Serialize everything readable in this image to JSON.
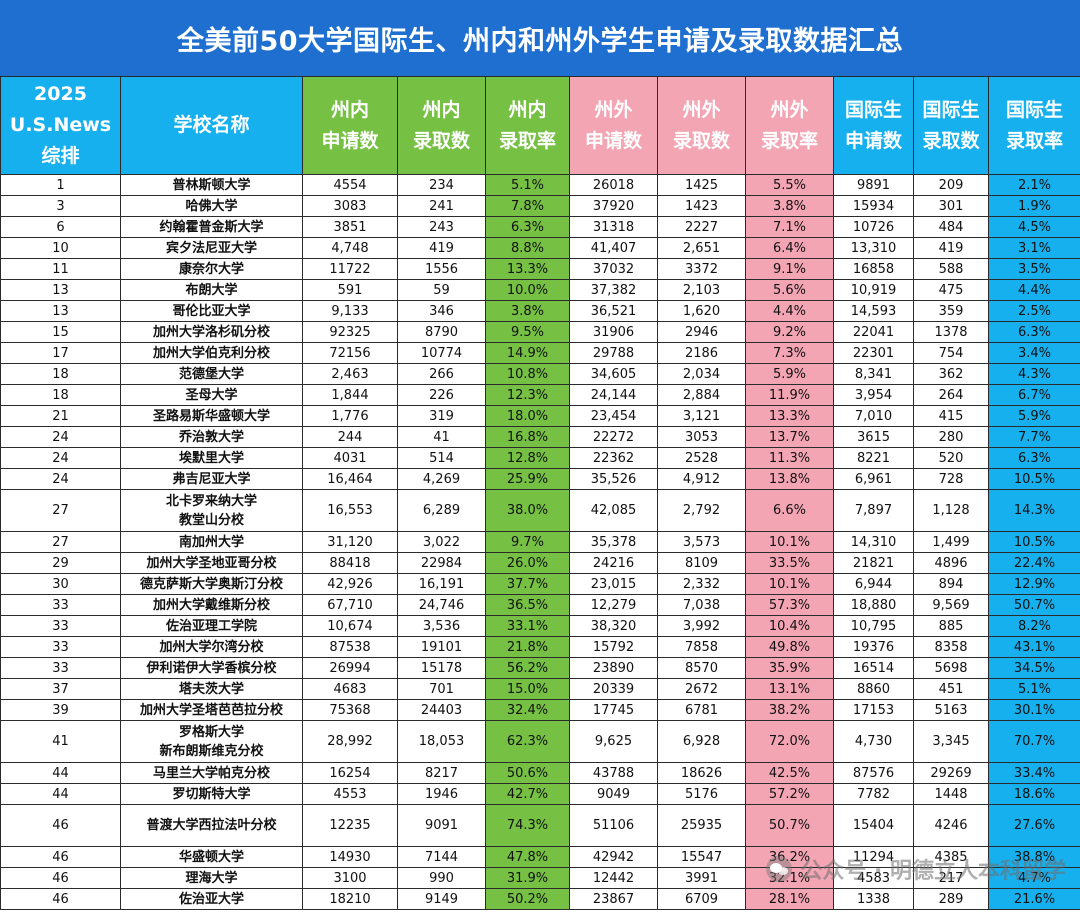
{
  "title": "全美前50大学国际生、州内和州外学生申请及录取数据汇总",
  "headers": {
    "rank": [
      "2025",
      "U.S.News",
      "综排"
    ],
    "school": "学校名称",
    "in_apps": [
      "州内",
      "申请数"
    ],
    "in_admits": [
      "州内",
      "录取数"
    ],
    "in_rate": [
      "州内",
      "录取率"
    ],
    "out_apps": [
      "州外",
      "申请数"
    ],
    "out_admits": [
      "州外",
      "录取数"
    ],
    "out_rate": [
      "州外",
      "录取率"
    ],
    "intl_apps": [
      "国际生",
      "申请数"
    ],
    "intl_admits": [
      "国际生",
      "录取数"
    ],
    "intl_rate": [
      "国际生",
      "录取率"
    ]
  },
  "rows": [
    {
      "rank": "1",
      "school": "普林斯顿大学",
      "in_apps": "4554",
      "in_admits": "234",
      "in_rate": "5.1%",
      "out_apps": "26018",
      "out_admits": "1425",
      "out_rate": "5.5%",
      "intl_apps": "9891",
      "intl_admits": "209",
      "intl_rate": "2.1%"
    },
    {
      "rank": "3",
      "school": "哈佛大学",
      "in_apps": "3083",
      "in_admits": "241",
      "in_rate": "7.8%",
      "out_apps": "37920",
      "out_admits": "1423",
      "out_rate": "3.8%",
      "intl_apps": "15934",
      "intl_admits": "301",
      "intl_rate": "1.9%"
    },
    {
      "rank": "6",
      "school": "约翰霍普金斯大学",
      "in_apps": "3851",
      "in_admits": "243",
      "in_rate": "6.3%",
      "out_apps": "31318",
      "out_admits": "2227",
      "out_rate": "7.1%",
      "intl_apps": "10726",
      "intl_admits": "484",
      "intl_rate": "4.5%"
    },
    {
      "rank": "10",
      "school": "宾夕法尼亚大学",
      "in_apps": "4,748",
      "in_admits": "419",
      "in_rate": "8.8%",
      "out_apps": "41,407",
      "out_admits": "2,651",
      "out_rate": "6.4%",
      "intl_apps": "13,310",
      "intl_admits": "419",
      "intl_rate": "3.1%"
    },
    {
      "rank": "11",
      "school": "康奈尔大学",
      "in_apps": "11722",
      "in_admits": "1556",
      "in_rate": "13.3%",
      "out_apps": "37032",
      "out_admits": "3372",
      "out_rate": "9.1%",
      "intl_apps": "16858",
      "intl_admits": "588",
      "intl_rate": "3.5%"
    },
    {
      "rank": "13",
      "school": "布朗大学",
      "in_apps": "591",
      "in_admits": "59",
      "in_rate": "10.0%",
      "out_apps": "37,382",
      "out_admits": "2,103",
      "out_rate": "5.6%",
      "intl_apps": "10,919",
      "intl_admits": "475",
      "intl_rate": "4.4%"
    },
    {
      "rank": "13",
      "school": "哥伦比亚大学",
      "in_apps": "9,133",
      "in_admits": "346",
      "in_rate": "3.8%",
      "out_apps": "36,521",
      "out_admits": "1,620",
      "out_rate": "4.4%",
      "intl_apps": "14,593",
      "intl_admits": "359",
      "intl_rate": "2.5%"
    },
    {
      "rank": "15",
      "school": "加州大学洛杉矶分校",
      "in_apps": "92325",
      "in_admits": "8790",
      "in_rate": "9.5%",
      "out_apps": "31906",
      "out_admits": "2946",
      "out_rate": "9.2%",
      "intl_apps": "22041",
      "intl_admits": "1378",
      "intl_rate": "6.3%"
    },
    {
      "rank": "17",
      "school": "加州大学伯克利分校",
      "in_apps": "72156",
      "in_admits": "10774",
      "in_rate": "14.9%",
      "out_apps": "29788",
      "out_admits": "2186",
      "out_rate": "7.3%",
      "intl_apps": "22301",
      "intl_admits": "754",
      "intl_rate": "3.4%"
    },
    {
      "rank": "18",
      "school": "范德堡大学",
      "in_apps": "2,463",
      "in_admits": "266",
      "in_rate": "10.8%",
      "out_apps": "34,605",
      "out_admits": "2,034",
      "out_rate": "5.9%",
      "intl_apps": "8,341",
      "intl_admits": "362",
      "intl_rate": "4.3%"
    },
    {
      "rank": "18",
      "school": "圣母大学",
      "in_apps": "1,844",
      "in_admits": "226",
      "in_rate": "12.3%",
      "out_apps": "24,144",
      "out_admits": "2,884",
      "out_rate": "11.9%",
      "intl_apps": "3,954",
      "intl_admits": "264",
      "intl_rate": "6.7%"
    },
    {
      "rank": "21",
      "school": "圣路易斯华盛顿大学",
      "in_apps": "1,776",
      "in_admits": "319",
      "in_rate": "18.0%",
      "out_apps": "23,454",
      "out_admits": "3,121",
      "out_rate": "13.3%",
      "intl_apps": "7,010",
      "intl_admits": "415",
      "intl_rate": "5.9%"
    },
    {
      "rank": "24",
      "school": "乔治敦大学",
      "in_apps": "244",
      "in_admits": "41",
      "in_rate": "16.8%",
      "out_apps": "22272",
      "out_admits": "3053",
      "out_rate": "13.7%",
      "intl_apps": "3615",
      "intl_admits": "280",
      "intl_rate": "7.7%"
    },
    {
      "rank": "24",
      "school": "埃默里大学",
      "in_apps": "4031",
      "in_admits": "514",
      "in_rate": "12.8%",
      "out_apps": "22362",
      "out_admits": "2528",
      "out_rate": "11.3%",
      "intl_apps": "8221",
      "intl_admits": "520",
      "intl_rate": "6.3%"
    },
    {
      "rank": "24",
      "school": "弗吉尼亚大学",
      "in_apps": "16,464",
      "in_admits": "4,269",
      "in_rate": "25.9%",
      "out_apps": "35,526",
      "out_admits": "4,912",
      "out_rate": "13.8%",
      "intl_apps": "6,961",
      "intl_admits": "728",
      "intl_rate": "10.5%"
    },
    {
      "rank": "27",
      "school": "北卡罗来纳大学教堂山分校",
      "school_lines": [
        "北卡罗来纳大学",
        "教堂山分校"
      ],
      "tall": true,
      "in_apps": "16,553",
      "in_admits": "6,289",
      "in_rate": "38.0%",
      "out_apps": "42,085",
      "out_admits": "2,792",
      "out_rate": "6.6%",
      "intl_apps": "7,897",
      "intl_admits": "1,128",
      "intl_rate": "14.3%"
    },
    {
      "rank": "27",
      "school": "南加州大学",
      "in_apps": "31,120",
      "in_admits": "3,022",
      "in_rate": "9.7%",
      "out_apps": "35,378",
      "out_admits": "3,573",
      "out_rate": "10.1%",
      "intl_apps": "14,310",
      "intl_admits": "1,499",
      "intl_rate": "10.5%"
    },
    {
      "rank": "29",
      "school": "加州大学圣地亚哥分校",
      "in_apps": "88418",
      "in_admits": "22984",
      "in_rate": "26.0%",
      "out_apps": "24216",
      "out_admits": "8109",
      "out_rate": "33.5%",
      "intl_apps": "21821",
      "intl_admits": "4896",
      "intl_rate": "22.4%"
    },
    {
      "rank": "30",
      "school": "德克萨斯大学奥斯汀分校",
      "in_apps": "42,926",
      "in_admits": "16,191",
      "in_rate": "37.7%",
      "out_apps": "23,015",
      "out_admits": "2,332",
      "out_rate": "10.1%",
      "intl_apps": "6,944",
      "intl_admits": "894",
      "intl_rate": "12.9%"
    },
    {
      "rank": "33",
      "school": "加州大学戴维斯分校",
      "in_apps": "67,710",
      "in_admits": "24,746",
      "in_rate": "36.5%",
      "out_apps": "12,279",
      "out_admits": "7,038",
      "out_rate": "57.3%",
      "intl_apps": "18,880",
      "intl_admits": "9,569",
      "intl_rate": "50.7%"
    },
    {
      "rank": "33",
      "school": "佐治亚理工学院",
      "in_apps": "10,674",
      "in_admits": "3,536",
      "in_rate": "33.1%",
      "out_apps": "38,320",
      "out_admits": "3,992",
      "out_rate": "10.4%",
      "intl_apps": "10,795",
      "intl_admits": "885",
      "intl_rate": "8.2%"
    },
    {
      "rank": "33",
      "school": "加州大学尔湾分校",
      "in_apps": "87538",
      "in_admits": "19101",
      "in_rate": "21.8%",
      "out_apps": "15792",
      "out_admits": "7858",
      "out_rate": "49.8%",
      "intl_apps": "19376",
      "intl_admits": "8358",
      "intl_rate": "43.1%"
    },
    {
      "rank": "33",
      "school": "伊利诺伊大学香槟分校",
      "in_apps": "26994",
      "in_admits": "15178",
      "in_rate": "56.2%",
      "out_apps": "23890",
      "out_admits": "8570",
      "out_rate": "35.9%",
      "intl_apps": "16514",
      "intl_admits": "5698",
      "intl_rate": "34.5%"
    },
    {
      "rank": "37",
      "school": "塔夫茨大学",
      "in_apps": "4683",
      "in_admits": "701",
      "in_rate": "15.0%",
      "out_apps": "20339",
      "out_admits": "2672",
      "out_rate": "13.1%",
      "intl_apps": "8860",
      "intl_admits": "451",
      "intl_rate": "5.1%"
    },
    {
      "rank": "39",
      "school": "加州大学圣塔芭芭拉分校",
      "in_apps": "75368",
      "in_admits": "24403",
      "in_rate": "32.4%",
      "out_apps": "17745",
      "out_admits": "6781",
      "out_rate": "38.2%",
      "intl_apps": "17153",
      "intl_admits": "5163",
      "intl_rate": "30.1%"
    },
    {
      "rank": "41",
      "school": "罗格斯大学新布朗斯维克分校",
      "school_lines": [
        "罗格斯大学",
        "新布朗斯维克分校"
      ],
      "tall": true,
      "in_apps": "28,992",
      "in_admits": "18,053",
      "in_rate": "62.3%",
      "out_apps": "9,625",
      "out_admits": "6,928",
      "out_rate": "72.0%",
      "intl_apps": "4,730",
      "intl_admits": "3,345",
      "intl_rate": "70.7%"
    },
    {
      "rank": "44",
      "school": "马里兰大学帕克分校",
      "in_apps": "16254",
      "in_admits": "8217",
      "in_rate": "50.6%",
      "out_apps": "43788",
      "out_admits": "18626",
      "out_rate": "42.5%",
      "intl_apps": "87576",
      "intl_admits": "29269",
      "intl_rate": "33.4%"
    },
    {
      "rank": "44",
      "school": "罗切斯特大学",
      "in_apps": "4553",
      "in_admits": "1946",
      "in_rate": "42.7%",
      "out_apps": "9049",
      "out_admits": "5176",
      "out_rate": "57.2%",
      "intl_apps": "7782",
      "intl_admits": "1448",
      "intl_rate": "18.6%"
    },
    {
      "rank": "46",
      "school": "普渡大学西拉法叶分校",
      "tall": true,
      "in_apps": "12235",
      "in_admits": "9091",
      "in_rate": "74.3%",
      "out_apps": "51106",
      "out_admits": "25935",
      "out_rate": "50.7%",
      "intl_apps": "15404",
      "intl_admits": "4246",
      "intl_rate": "27.6%"
    },
    {
      "rank": "46",
      "school": "华盛顿大学",
      "in_apps": "14930",
      "in_admits": "7144",
      "in_rate": "47.8%",
      "out_apps": "42942",
      "out_admits": "15547",
      "out_rate": "36.2%",
      "intl_apps": "11294",
      "intl_admits": "4385",
      "intl_rate": "38.8%"
    },
    {
      "rank": "46",
      "school": "理海大学",
      "in_apps": "3100",
      "in_admits": "990",
      "in_rate": "31.9%",
      "out_apps": "12442",
      "out_admits": "3991",
      "out_rate": "32.1%",
      "intl_apps": "4583",
      "intl_admits": "217",
      "intl_rate": "4.7%"
    },
    {
      "rank": "46",
      "school": "佐治亚大学",
      "in_apps": "18210",
      "in_admits": "9149",
      "in_rate": "50.2%",
      "out_apps": "23867",
      "out_admits": "6709",
      "out_rate": "28.1%",
      "intl_apps": "1338",
      "intl_admits": "289",
      "intl_rate": "21.6%"
    }
  ],
  "watermark": "公众号 · 明德立人本科留学",
  "icons": {
    "watermark": "wechat-icon"
  },
  "colors": {
    "title_bg": "#1f6fd1",
    "rank_school_header": "#17b0ee",
    "in_state": "#76c043",
    "out_state": "#f3a5b4",
    "international": "#17b0ee"
  }
}
